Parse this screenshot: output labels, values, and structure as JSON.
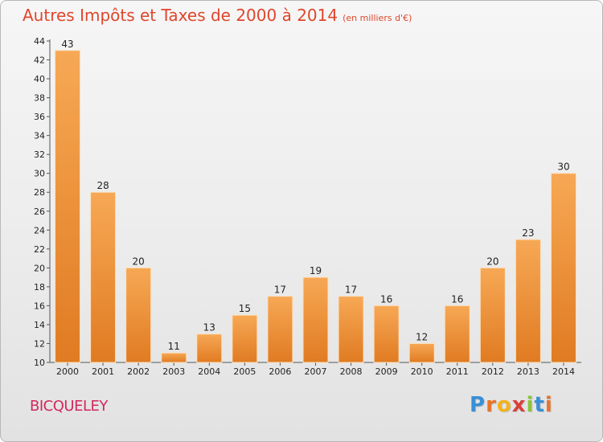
{
  "header": {
    "title": "Autres Impôts et Taxes de 2000 à 2014",
    "unit": "(en milliers d'€)"
  },
  "place": "BICQUELEY",
  "logo": {
    "letters": [
      "P",
      "r",
      "o",
      "x",
      "i",
      "t",
      "i"
    ],
    "colors": [
      "#3a8fd6",
      "#e8742a",
      "#f2b31c",
      "#d8403c",
      "#8bc43f",
      "#3a8fd6",
      "#e8742a"
    ]
  },
  "colors": {
    "bar_light": "#f7a855",
    "bar_dark": "#e07b22",
    "title": "#e0462c",
    "place": "#d1285d"
  },
  "chart_data": {
    "type": "bar",
    "title": "Autres Impôts et Taxes de 2000 à 2014",
    "subtitle": "(en milliers d'€)",
    "xlabel": "",
    "ylabel": "",
    "categories": [
      "2000",
      "2001",
      "2002",
      "2003",
      "2004",
      "2005",
      "2006",
      "2007",
      "2008",
      "2009",
      "2010",
      "2011",
      "2012",
      "2013",
      "2014"
    ],
    "values": [
      43,
      28,
      20,
      11,
      13,
      15,
      17,
      19,
      17,
      16,
      12,
      16,
      20,
      23,
      30
    ],
    "value_labels": [
      "43",
      "28",
      "20",
      "11",
      "13",
      "15",
      "17",
      "19",
      "17",
      "16",
      "12",
      "16",
      "20",
      "23",
      "30"
    ],
    "ylim": [
      10,
      44
    ],
    "yticks": [
      "10",
      "12",
      "14",
      "16",
      "18",
      "20",
      "22",
      "24",
      "26",
      "28",
      "30",
      "32",
      "34",
      "36",
      "38",
      "40",
      "42",
      "44"
    ],
    "grid": false,
    "legend": "none"
  }
}
